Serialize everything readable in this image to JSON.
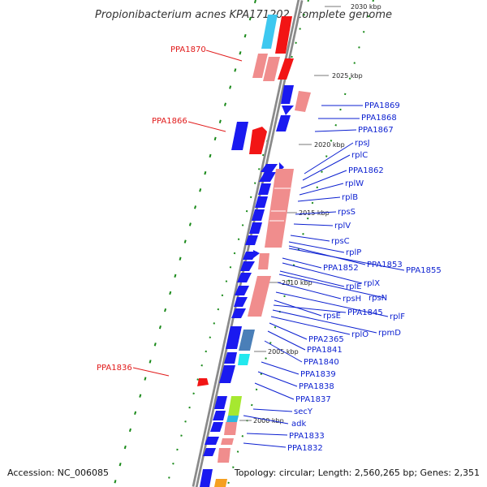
{
  "title": "Propionibacterium acnes KPA171202, complete genome",
  "accession": "Accession: NC_006085",
  "topology": "Topology: circular; Length: 2,560,265 bp; Genes: 2,351",
  "colors": {
    "left_label": "#e11a1a",
    "right_label": "#0b1fd0",
    "forward_gene": "#1a1af0",
    "reverse_gene": "#f21515",
    "rna_gene": "#f08d8d",
    "backbone": "#8a8a8a"
  },
  "kbp_ticks": [
    "2030 kbp",
    "2025 kbp",
    "2020 kbp",
    "2015 kbp",
    "2010 kbp",
    "2005 kbp",
    "2000 kbp"
  ],
  "left_labels": [
    "PPA1870",
    "PPA1866",
    "PPA1836"
  ],
  "right_labels": [
    "PPA1869",
    "PPA1868",
    "PPA1867",
    "rpsJ",
    "rplC",
    "PPA1862",
    "rplW",
    "rplB",
    "rpsS",
    "rplV",
    "rpsC",
    "rplP",
    "PPA1853",
    "PPA1855",
    "PPA1852",
    "rplX",
    "rplE",
    "rpsN",
    "rpsH",
    "rplF",
    "rpsE",
    "PPA1845",
    "rpmD",
    "rplO",
    "PPA2365",
    "PPA1841",
    "PPA1840",
    "PPA1839",
    "PPA1838",
    "PPA1837",
    "secY",
    "adk",
    "PPA1833",
    "PPA1832"
  ]
}
